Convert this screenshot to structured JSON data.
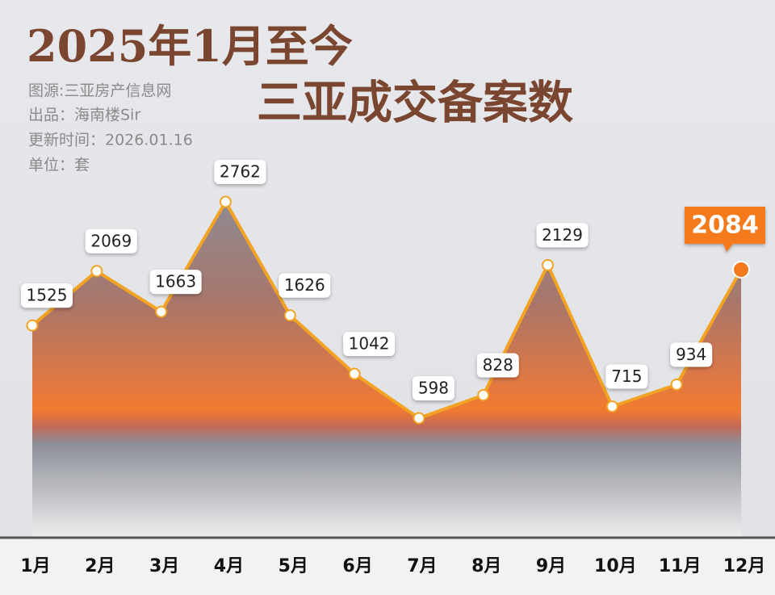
{
  "chart_data": {
    "type": "line",
    "title": "2025年1月至今",
    "subtitle": "三亚成交备案数",
    "source": "图源:三亚房产信息网",
    "producer": "出品：海南楼Sir",
    "updated": "更新时间：2026.01.16",
    "unit": "单位：套",
    "categories": [
      "1月",
      "2月",
      "3月",
      "4月",
      "5月",
      "6月",
      "7月",
      "8月",
      "9月",
      "10月",
      "11月",
      "12月"
    ],
    "values": [
      1525,
      2069,
      1663,
      2762,
      1626,
      1042,
      598,
      828,
      2129,
      715,
      934,
      2084
    ],
    "color": "#f2a324",
    "highlight_color": "#f47a1f"
  }
}
